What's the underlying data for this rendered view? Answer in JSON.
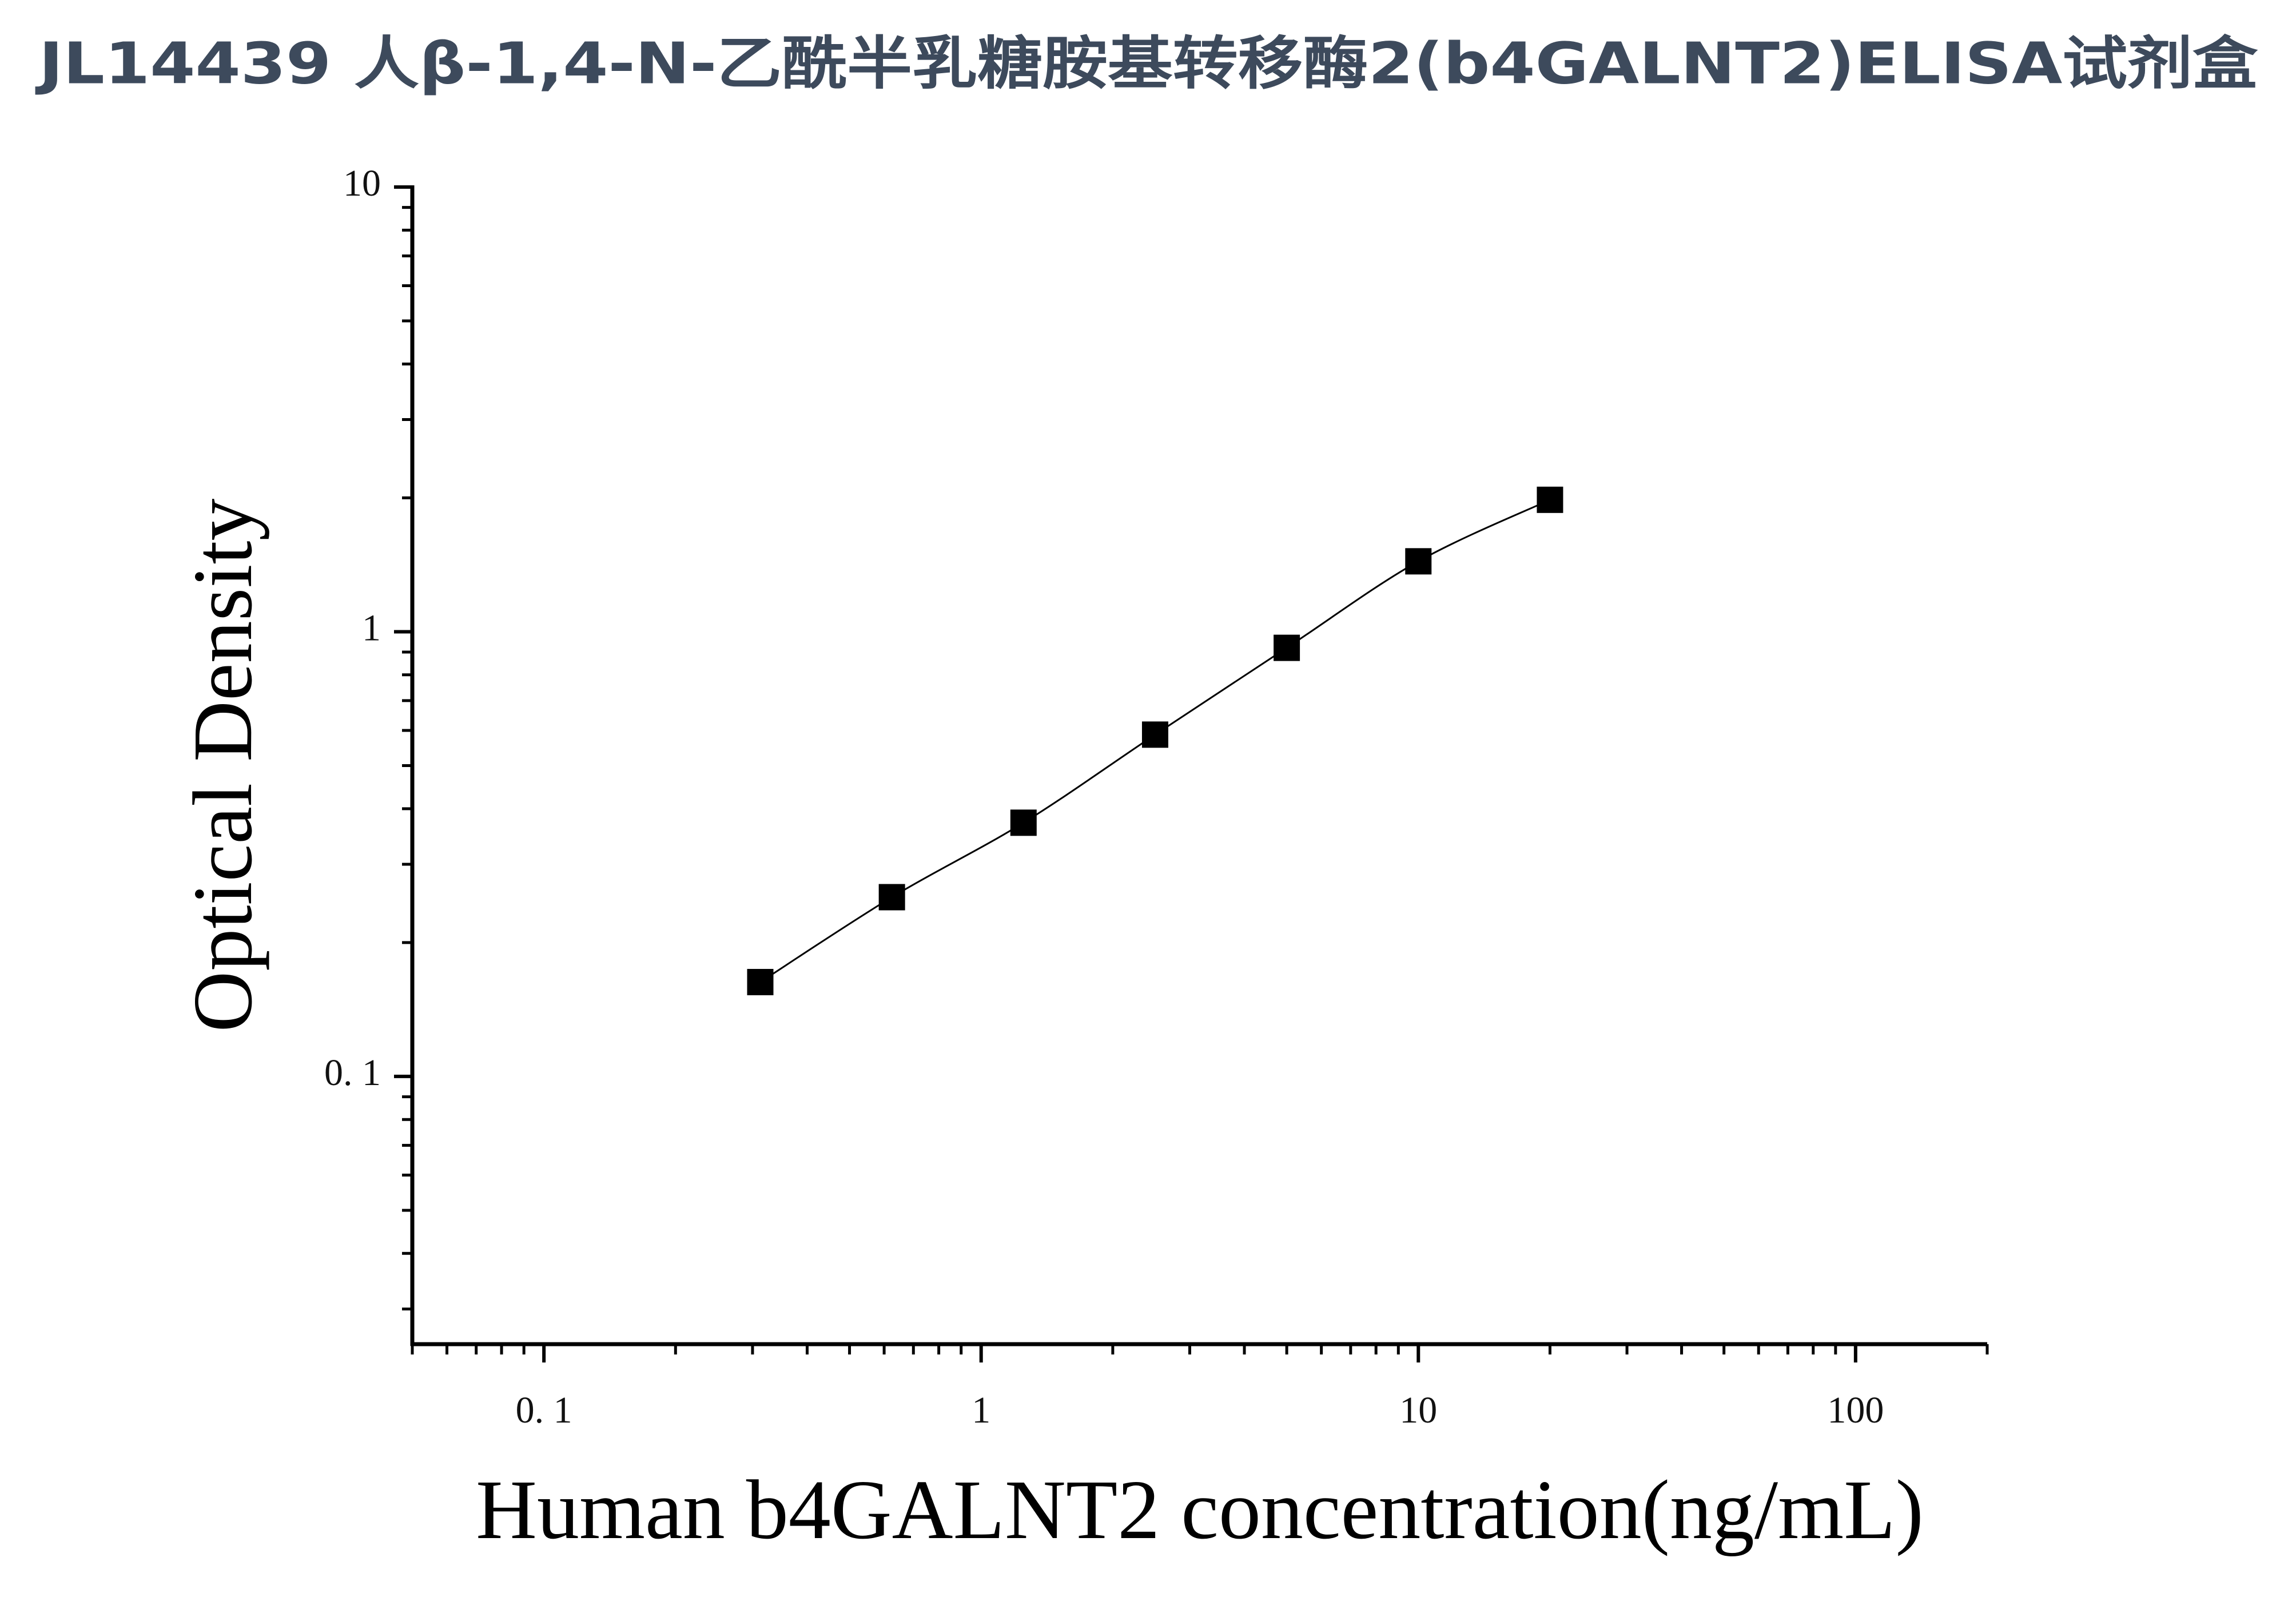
{
  "chart_data": {
    "type": "scatter",
    "title": "JL14439 人β-1,4-N-乙酰半乳糖胺基转移酶2(b4GALNT2)ELISA试剂盒",
    "x_label": "Human b4GALNT2 concentration(ng/mL)",
    "y_label": "Optical Density",
    "x_log": true,
    "y_log": true,
    "xlim": [
      0.05,
      200
    ],
    "ylim": [
      0.025,
      10
    ],
    "xticks": [
      {
        "value": 0.1,
        "label": "0. 1"
      },
      1,
      10,
      100
    ],
    "yticks": [
      {
        "value": 0.1,
        "label": "0. 1"
      },
      1,
      10
    ],
    "series": [
      {
        "color": "#000000",
        "x": [
          0.3125,
          0.625,
          1.25,
          2.5,
          5,
          10,
          20
        ],
        "values": [
          0.163,
          0.253,
          0.372,
          0.587,
          0.92,
          1.44,
          1.98
        ]
      }
    ],
    "fit_line": true
  }
}
